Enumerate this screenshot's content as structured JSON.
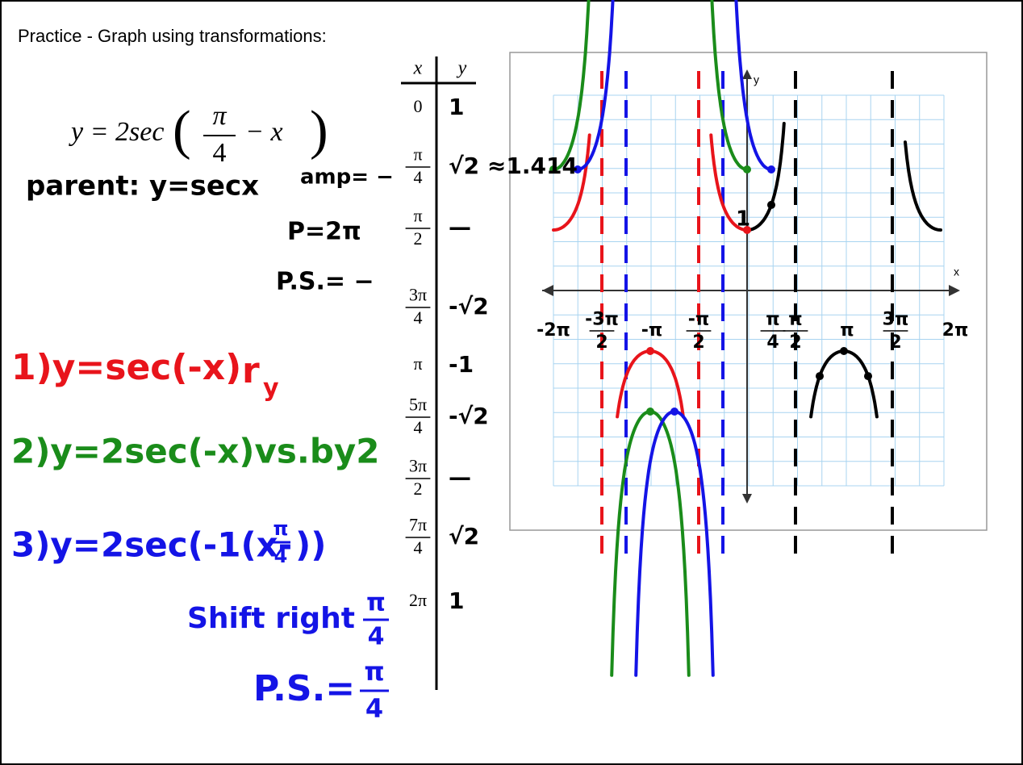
{
  "header": {
    "title": "Practice - Graph using transformations:"
  },
  "equation": {
    "lhs": "y = 2sec",
    "num": "π",
    "den": "4",
    "rest": "− x"
  },
  "notes": {
    "parent": "parent: y=secx",
    "amp": "amp= −",
    "period": "P=2π",
    "phase_shift": "P.S.= −"
  },
  "steps": [
    {
      "text": "1)y=sec(-x)",
      "tag": "r",
      "sub": "y"
    },
    {
      "text": "2)y=2sec(-x)vs.by2"
    },
    {
      "text": "3)y=2sec(-1(x-",
      "num": "π",
      "den": "4",
      "close": "))"
    }
  ],
  "shift": {
    "text": "Shift right",
    "num": "π",
    "den": "4"
  },
  "ps": {
    "text": "P.S.=",
    "num": "π",
    "den": "4"
  },
  "table": {
    "header": [
      "x",
      "y"
    ],
    "rows": [
      [
        {
          "text": "0"
        },
        "1"
      ],
      [
        {
          "num": "π",
          "den": "4"
        },
        "√2 ≈1.414"
      ],
      [
        {
          "num": "π",
          "den": "2"
        },
        "—"
      ],
      [
        {
          "num": "3π",
          "den": "4"
        },
        "-√2"
      ],
      [
        {
          "text": "π"
        },
        "-1"
      ],
      [
        {
          "num": "5π",
          "den": "4"
        },
        "-√2"
      ],
      [
        {
          "num": "3π",
          "den": "2"
        },
        "—"
      ],
      [
        {
          "num": "7π",
          "den": "4"
        },
        "√2"
      ],
      [
        {
          "text": "2π"
        },
        "1"
      ]
    ]
  },
  "graph": {
    "x_label": "x",
    "y_label": "y",
    "y_mark": "1",
    "x_ticks": [
      {
        "text": "-2π"
      },
      {
        "num": "-3π",
        "den": "2"
      },
      {
        "text": "-π"
      },
      {
        "num": "-π",
        "den": "2"
      },
      {
        "num": "π",
        "den": "4"
      },
      {
        "num": "π",
        "den": "2"
      },
      {
        "text": "π"
      },
      {
        "num": "3π",
        "den": "2"
      },
      {
        "text": "2π"
      }
    ]
  }
}
